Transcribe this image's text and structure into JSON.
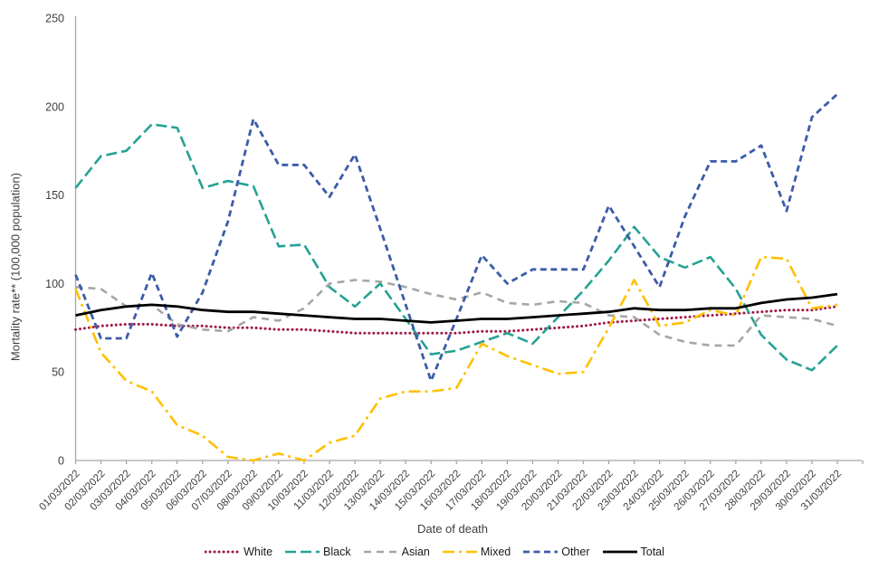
{
  "chart_data": {
    "type": "line",
    "title": "",
    "xlabel": "Date of death",
    "ylabel": "Mortality rate** (100,000 population)",
    "ylim": [
      0,
      250
    ],
    "yticks": [
      0,
      50,
      100,
      150,
      200,
      250
    ],
    "grid": false,
    "legend_position": "bottom",
    "x": [
      "01/03/2022",
      "02/03/2022",
      "03/03/2022",
      "04/03/2022",
      "05/03/2022",
      "06/03/2022",
      "07/03/2022",
      "08/03/2022",
      "09/03/2022",
      "10/03/2022",
      "11/03/2022",
      "12/03/2022",
      "13/03/2022",
      "14/03/2022",
      "15/03/2022",
      "16/03/2022",
      "17/03/2022",
      "18/03/2022",
      "19/03/2022",
      "20/03/2022",
      "21/03/2022",
      "22/03/2022",
      "23/03/2022",
      "24/03/2022",
      "25/03/2022",
      "26/03/2022",
      "27/03/2022",
      "28/03/2022",
      "29/03/2022",
      "30/03/2022",
      "31/03/2022"
    ],
    "series": [
      {
        "name": "White",
        "color": "#9e1b49",
        "style": "dotted",
        "values": [
          74,
          76,
          77,
          77,
          76,
          76,
          75,
          75,
          74,
          74,
          73,
          72,
          72,
          72,
          72,
          72,
          73,
          73,
          74,
          75,
          76,
          78,
          79,
          80,
          81,
          82,
          83,
          84,
          85,
          85,
          87
        ]
      },
      {
        "name": "Black",
        "color": "#25a294",
        "style": "long-dash",
        "values": [
          154,
          172,
          175,
          190,
          188,
          154,
          158,
          155,
          121,
          122,
          98,
          87,
          100,
          80,
          60,
          62,
          67,
          72,
          66,
          81,
          96,
          113,
          132,
          115,
          109,
          115,
          97,
          71,
          57,
          51,
          65
        ]
      },
      {
        "name": "Asian",
        "color": "#a6a6a6",
        "style": "dash",
        "values": [
          98,
          97,
          87,
          88,
          77,
          74,
          73,
          81,
          79,
          86,
          100,
          102,
          101,
          98,
          94,
          91,
          95,
          89,
          88,
          90,
          89,
          82,
          81,
          71,
          67,
          65,
          65,
          82,
          81,
          80,
          76
        ]
      },
      {
        "name": "Mixed",
        "color": "#ffc000",
        "style": "dash-dot",
        "values": [
          97,
          61,
          45,
          39,
          20,
          14,
          2,
          0,
          4,
          0,
          10,
          14,
          35,
          39,
          39,
          41,
          66,
          59,
          54,
          49,
          50,
          75,
          102,
          76,
          78,
          85,
          82,
          115,
          114,
          86,
          88
        ]
      },
      {
        "name": "Other",
        "color": "#3c5ca9",
        "style": "short-dash",
        "values": [
          105,
          69,
          69,
          106,
          70,
          95,
          135,
          193,
          167,
          167,
          149,
          173,
          131,
          88,
          45,
          80,
          116,
          100,
          108,
          108,
          108,
          144,
          121,
          98,
          138,
          169,
          169,
          178,
          141,
          194,
          207
        ]
      },
      {
        "name": "Total",
        "color": "#000000",
        "style": "solid",
        "values": [
          82,
          85,
          87,
          88,
          87,
          85,
          84,
          84,
          83,
          82,
          81,
          80,
          80,
          79,
          78,
          79,
          80,
          80,
          81,
          82,
          83,
          84,
          86,
          85,
          85,
          86,
          86,
          89,
          91,
          92,
          94
        ]
      }
    ],
    "axis_color": "#a6a6a6",
    "tick_label_color": "#3f3f3f"
  }
}
